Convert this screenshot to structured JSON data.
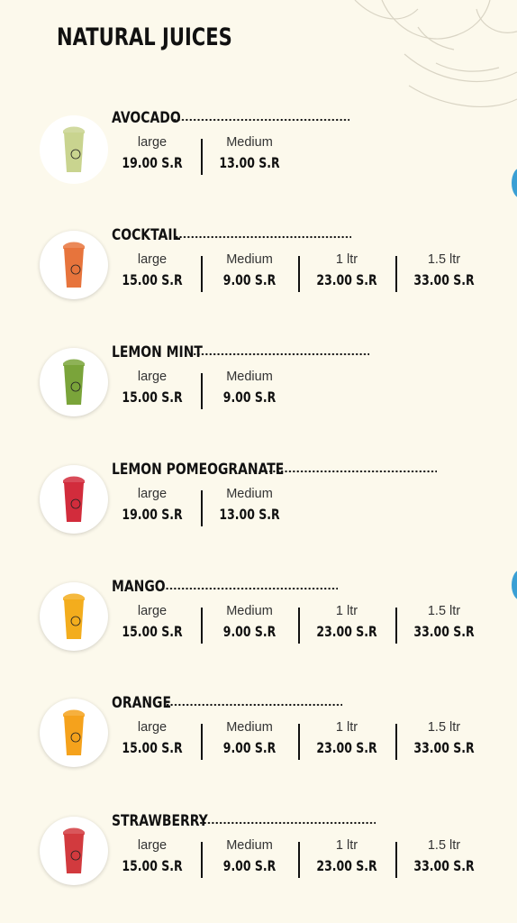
{
  "page": {
    "title": "NATURAL JUICES"
  },
  "items": [
    {
      "name": "AVOCADO",
      "cup_color": "#c9d48f",
      "image_icon": "avocado-juice-cup-icon",
      "sizes": [
        {
          "label": "large",
          "price": "19.00 S.R"
        },
        {
          "label": "Medium",
          "price": "13.00 S.R"
        }
      ]
    },
    {
      "name": "COCKTAIL",
      "cup_color": "#e7743c",
      "image_icon": "cocktail-juice-cup-icon",
      "sizes": [
        {
          "label": "large",
          "price": "15.00 S.R"
        },
        {
          "label": "Medium",
          "price": "9.00 S.R"
        },
        {
          "label": "1 ltr",
          "price": "23.00 S.R"
        },
        {
          "label": "1.5 ltr",
          "price": "33.00 S.R"
        }
      ]
    },
    {
      "name": "LEMON MINT",
      "cup_color": "#7aa43a",
      "image_icon": "lemon-mint-juice-cup-icon",
      "sizes": [
        {
          "label": "large",
          "price": "15.00 S.R"
        },
        {
          "label": "Medium",
          "price": "9.00 S.R"
        }
      ]
    },
    {
      "name": "LEMON POMEOGRANATE",
      "cup_color": "#d22c3c",
      "image_icon": "lemon-pomegranate-juice-cup-icon",
      "sizes": [
        {
          "label": "large",
          "price": "19.00 S.R"
        },
        {
          "label": "Medium",
          "price": "13.00 S.R"
        }
      ]
    },
    {
      "name": "MANGO",
      "cup_color": "#f3ad1d",
      "image_icon": "mango-juice-cup-icon",
      "sizes": [
        {
          "label": "large",
          "price": "15.00 S.R"
        },
        {
          "label": "Medium",
          "price": "9.00 S.R"
        },
        {
          "label": "1 ltr",
          "price": "23.00 S.R"
        },
        {
          "label": "1.5 ltr",
          "price": "33.00 S.R"
        }
      ]
    },
    {
      "name": "ORANGE",
      "cup_color": "#f5a21c",
      "image_icon": "orange-juice-cup-icon",
      "sizes": [
        {
          "label": "large",
          "price": "15.00 S.R"
        },
        {
          "label": "Medium",
          "price": "9.00 S.R"
        },
        {
          "label": "1 ltr",
          "price": "23.00 S.R"
        },
        {
          "label": "1.5 ltr",
          "price": "33.00 S.R"
        }
      ]
    },
    {
      "name": "STRAWBERRY",
      "cup_color": "#d23a3e",
      "image_icon": "strawberry-juice-cup-icon",
      "sizes": [
        {
          "label": "large",
          "price": "15.00 S.R"
        },
        {
          "label": "Medium",
          "price": "9.00 S.R"
        },
        {
          "label": "1 ltr",
          "price": "23.00 S.R"
        },
        {
          "label": "1.5 ltr",
          "price": "33.00 S.R"
        }
      ]
    }
  ],
  "colors": {
    "background": "#fcf9ec",
    "text": "#111111",
    "side_tab": "#3a9fd4"
  }
}
